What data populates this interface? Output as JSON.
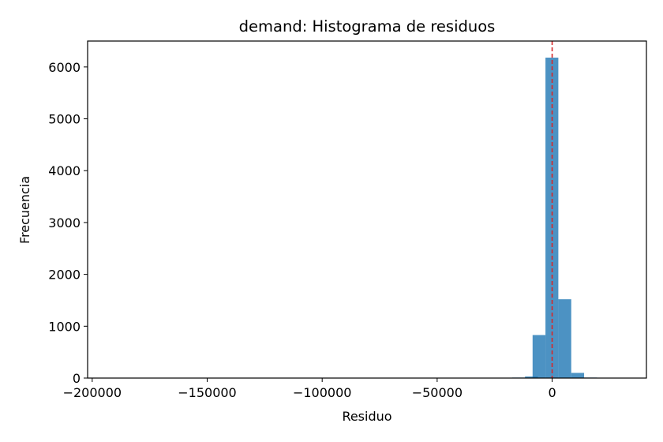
{
  "chart_data": {
    "type": "bar",
    "title": "demand: Histograma de residuos",
    "xlabel": "Residuo",
    "ylabel": "Frecuencia",
    "xlim": [
      -202000,
      41000
    ],
    "ylim": [
      0,
      6500
    ],
    "xticks": [
      -200000,
      -150000,
      -100000,
      -50000,
      0
    ],
    "xtick_labels": [
      "−200000",
      "−150000",
      "−100000",
      "−50000",
      "0"
    ],
    "yticks": [
      0,
      1000,
      2000,
      3000,
      4000,
      5000,
      6000
    ],
    "ytick_labels": [
      "0",
      "1000",
      "2000",
      "3000",
      "4000",
      "5000",
      "6000"
    ],
    "bin_width": 5600,
    "bins": [
      {
        "start": -191000,
        "count": 1
      },
      {
        "start": -185400,
        "count": 1
      },
      {
        "start": -179800,
        "count": 1
      },
      {
        "start": -174200,
        "count": 1
      },
      {
        "start": -168600,
        "count": 1
      },
      {
        "start": -163000,
        "count": 1
      },
      {
        "start": -157400,
        "count": 1
      },
      {
        "start": -151800,
        "count": 1
      },
      {
        "start": -146200,
        "count": 1
      },
      {
        "start": -140600,
        "count": 1
      },
      {
        "start": -135000,
        "count": 1
      },
      {
        "start": -129400,
        "count": 1
      },
      {
        "start": -123800,
        "count": 1
      },
      {
        "start": -118200,
        "count": 1
      },
      {
        "start": -112600,
        "count": 1
      },
      {
        "start": -107000,
        "count": 1
      },
      {
        "start": -101400,
        "count": 1
      },
      {
        "start": -95800,
        "count": 1
      },
      {
        "start": -90200,
        "count": 1
      },
      {
        "start": -84600,
        "count": 1
      },
      {
        "start": -79000,
        "count": 1
      },
      {
        "start": -73400,
        "count": 1
      },
      {
        "start": -67800,
        "count": 1
      },
      {
        "start": -62200,
        "count": 1
      },
      {
        "start": -56600,
        "count": 1
      },
      {
        "start": -51000,
        "count": 1
      },
      {
        "start": -45400,
        "count": 1
      },
      {
        "start": -39800,
        "count": 1
      },
      {
        "start": -34200,
        "count": 1
      },
      {
        "start": -28600,
        "count": 2
      },
      {
        "start": -23000,
        "count": 5
      },
      {
        "start": -17400,
        "count": 10
      },
      {
        "start": -11800,
        "count": 30
      },
      {
        "start": -8500,
        "count": 830
      },
      {
        "start": -2900,
        "count": 6180
      },
      {
        "start": 2700,
        "count": 1520
      },
      {
        "start": 8300,
        "count": 100
      },
      {
        "start": 13900,
        "count": 10
      }
    ],
    "reference_line": {
      "x": 0,
      "color": "#d62728",
      "style": "dashed"
    },
    "bar_color": "#1f77b4",
    "grid": false,
    "legend": "none"
  }
}
